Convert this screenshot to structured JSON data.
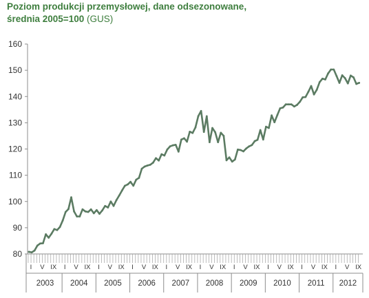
{
  "title_line1": "Poziom produkcji przemysłowej, dane odsezonowane,",
  "title_line2_main": "średnia 2005=100",
  "title_line2_source": "(GUS)",
  "chart_data": {
    "type": "line",
    "title": "Poziom produkcji przemysłowej, dane odsezonowane, średnia 2005=100 (GUS)",
    "ylim": [
      80,
      160
    ],
    "yticks": [
      80,
      90,
      100,
      110,
      120,
      130,
      140,
      150,
      160
    ],
    "grid": false,
    "line_color": "#5b7b62",
    "years": [
      "2003",
      "2004",
      "2005",
      "2006",
      "2007",
      "2008",
      "2009",
      "2010",
      "2011",
      "2012"
    ],
    "month_labels": [
      "I",
      "V",
      "IX"
    ],
    "x_start": "2003-01",
    "months_count": 118,
    "values": [
      80.8,
      80.6,
      81.3,
      83.2,
      84.0,
      84.1,
      87.5,
      86.2,
      87.7,
      89.5,
      89.1,
      90.3,
      92.8,
      96.0,
      97.1,
      101.6,
      96.2,
      94.3,
      94.3,
      97.0,
      96.2,
      96.0,
      97.0,
      95.5,
      96.7,
      95.3,
      96.6,
      98.3,
      97.7,
      100.0,
      98.3,
      100.5,
      102.3,
      104.2,
      106.0,
      106.5,
      107.5,
      106.0,
      108.3,
      109.0,
      112.5,
      113.3,
      113.7,
      114.0,
      114.8,
      116.5,
      115.6,
      118.0,
      117.5,
      119.8,
      121.0,
      121.4,
      121.6,
      119.0,
      123.6,
      124.1,
      122.8,
      126.6,
      126.1,
      128.2,
      132.5,
      134.5,
      126.5,
      132.5,
      122.6,
      128.0,
      126.4,
      122.6,
      126.2,
      125.0,
      115.7,
      116.8,
      115.2,
      116.0,
      119.8,
      119.6,
      119.1,
      120.2,
      121.0,
      121.5,
      123.0,
      123.5,
      127.2,
      123.6,
      128.5,
      128.0,
      132.8,
      130.2,
      132.9,
      135.5,
      135.8,
      137.0,
      137.0,
      137.0,
      136.2,
      136.8,
      138.0,
      139.7,
      139.8,
      141.8,
      144.0,
      140.8,
      142.6,
      145.5,
      146.8,
      146.5,
      148.8,
      150.3,
      150.3,
      147.8,
      145.2,
      148.1,
      147.0,
      145.0,
      148.0,
      147.3,
      144.8,
      145.2
    ]
  }
}
